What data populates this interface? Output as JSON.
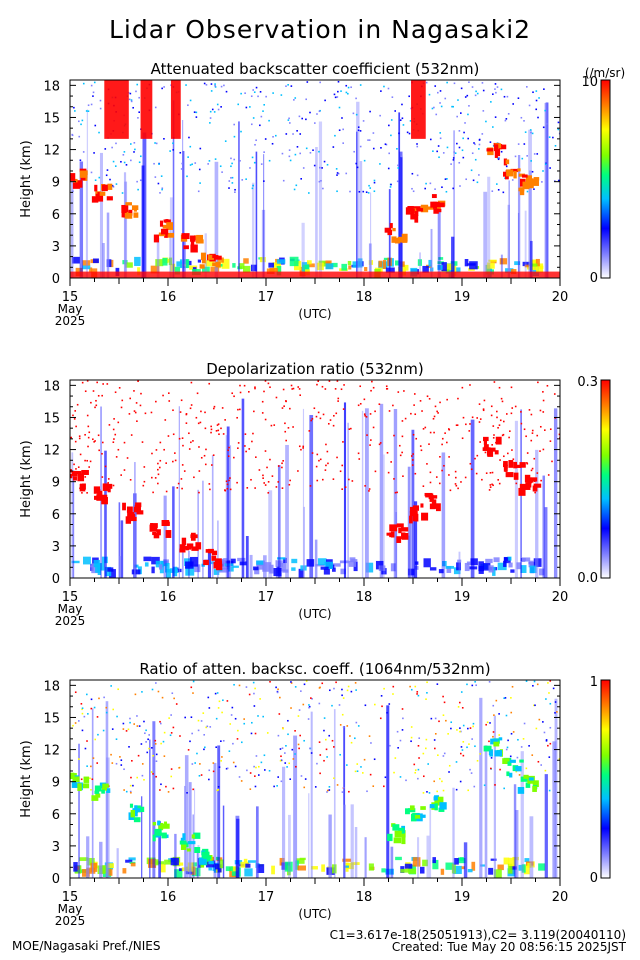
{
  "title": "Lidar Observation in Nagasaki2",
  "colors": {
    "colormap": [
      "#ffffff",
      "#8080ff",
      "#0000ff",
      "#00c0ff",
      "#00ff80",
      "#80ff00",
      "#ffff00",
      "#ff8000",
      "#ff0000"
    ]
  },
  "chart_data": [
    {
      "type": "heatmap",
      "title": "Attenuated backscatter coefficient (532nm)",
      "ylabel": "Height (km)",
      "xlabel": "(UTC)",
      "x_start_labels": [
        "May",
        "2025"
      ],
      "xticks": [
        "15",
        "16",
        "17",
        "18",
        "19",
        "20"
      ],
      "xlim": [
        15,
        20
      ],
      "yticks": [
        "0",
        "3",
        "6",
        "9",
        "12",
        "15",
        "18"
      ],
      "ylim": [
        0,
        18.5
      ],
      "colorbar": {
        "min": "0",
        "max": "10",
        "unit": "(/m/sr)"
      }
    },
    {
      "type": "heatmap",
      "title": "Depolarization ratio (532nm)",
      "ylabel": "Height (km)",
      "xlabel": "(UTC)",
      "x_start_labels": [
        "May",
        "2025"
      ],
      "xticks": [
        "15",
        "16",
        "17",
        "18",
        "19",
        "20"
      ],
      "xlim": [
        15,
        20
      ],
      "yticks": [
        "0",
        "3",
        "6",
        "9",
        "12",
        "15",
        "18"
      ],
      "ylim": [
        0,
        18.5
      ],
      "colorbar": {
        "min": "0.0",
        "max": "0.3",
        "unit": ""
      }
    },
    {
      "type": "heatmap",
      "title": "Ratio of atten. backsc. coeff. (1064nm/532nm)",
      "ylabel": "Height (km)",
      "xlabel": "(UTC)",
      "x_start_labels": [
        "May",
        "2025"
      ],
      "xticks": [
        "15",
        "16",
        "17",
        "18",
        "19",
        "20"
      ],
      "xlim": [
        15,
        20
      ],
      "yticks": [
        "0",
        "3",
        "6",
        "9",
        "12",
        "15",
        "18"
      ],
      "ylim": [
        0,
        18.5
      ],
      "colorbar": {
        "min": "0",
        "max": "1",
        "unit": ""
      }
    }
  ],
  "footer": {
    "left": "MOE/Nagasaki Pref./NIES",
    "calib": "C1=3.617e-18(25051913),C2= 3.119(20040110)",
    "created": "Created: Tue May 20 08:56:15 2025JST"
  }
}
